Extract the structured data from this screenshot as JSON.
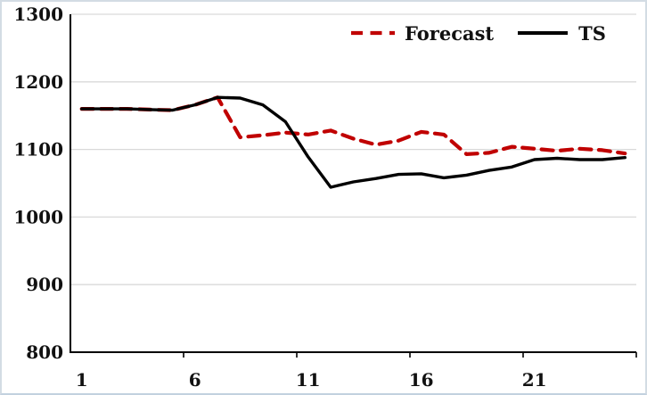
{
  "chart_data": {
    "type": "line",
    "title": "",
    "xlabel": "",
    "ylabel": "",
    "x": [
      1,
      2,
      3,
      4,
      5,
      6,
      7,
      8,
      9,
      10,
      11,
      12,
      13,
      14,
      15,
      16,
      17,
      18,
      19,
      20,
      21,
      22,
      23,
      24,
      25
    ],
    "series": [
      {
        "name": "Forecast",
        "color": "#C00000",
        "style": "dashed",
        "note": "overlaps TS line for x=1..7, diverges from x=8",
        "values": [
          1160,
          1160,
          1160,
          1159,
          1158,
          1166,
          1177,
          1118,
          1121,
          1125,
          1122,
          1128,
          1116,
          1107,
          1113,
          1126,
          1122,
          1093,
          1095,
          1104,
          1101,
          1098,
          1101,
          1099,
          1094
        ]
      },
      {
        "name": "TS",
        "color": "#000000",
        "style": "solid",
        "values": [
          1160,
          1160,
          1160,
          1159,
          1158,
          1166,
          1177,
          1176,
          1166,
          1141,
          1089,
          1044,
          1052,
          1057,
          1063,
          1064,
          1058,
          1062,
          1069,
          1074,
          1085,
          1087,
          1085,
          1085,
          1088
        ]
      }
    ],
    "ylim": [
      800,
      1300
    ],
    "ytick_step": 100,
    "yticks_labels": [
      "800",
      "900",
      "1000",
      "1100",
      "1200",
      "1300"
    ],
    "xticks_labels": [
      1,
      6,
      11,
      16,
      21
    ],
    "grid": true,
    "legend_position": "top-right-inside"
  },
  "colors": {
    "forecast": "#C00000",
    "ts": "#000000",
    "gridline": "#D9D9D9",
    "axis": "#000000",
    "frame": "#D3DCE4"
  }
}
